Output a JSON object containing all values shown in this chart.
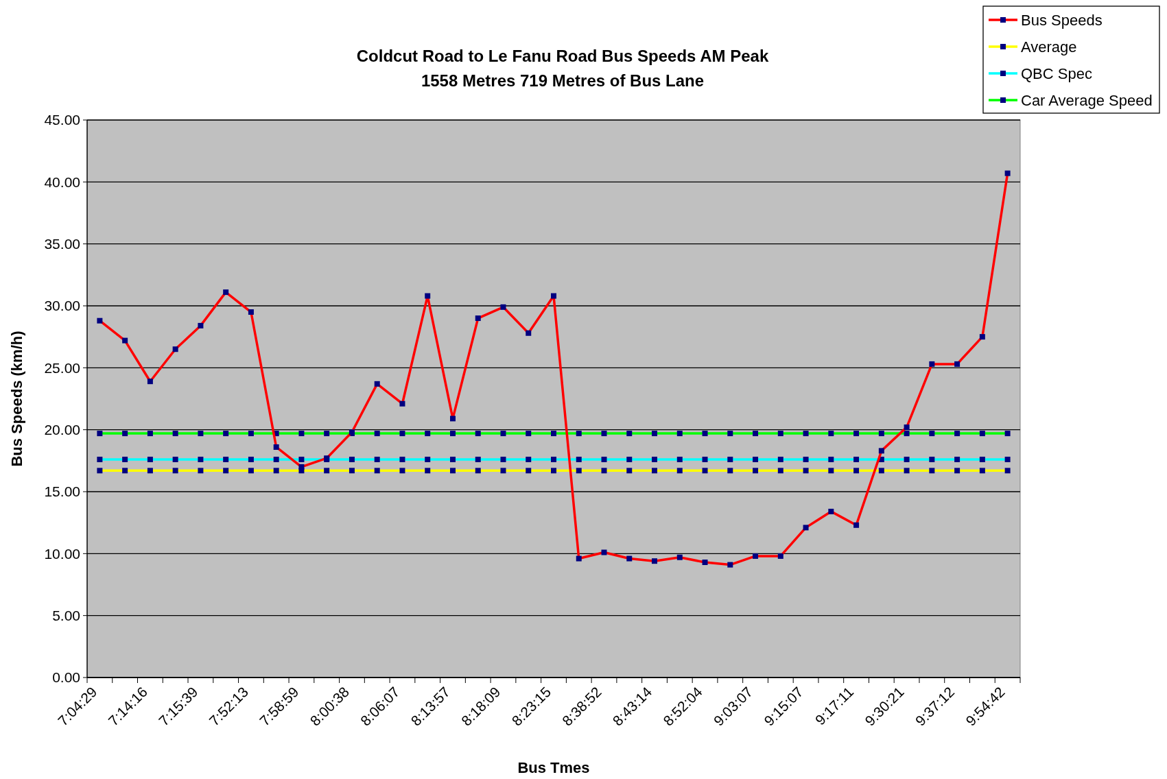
{
  "chart_data": {
    "type": "line",
    "title": "Coldcut Road to Le Fanu Road Bus Speeds AM Peak",
    "subtitle": "1558 Metres 719 Metres of Bus Lane",
    "xlabel": "Bus Tmes",
    "ylabel": "Bus Speeds (km/h)",
    "categories": [
      "7:04:29",
      null,
      "7:14:16",
      null,
      "7:15:39",
      null,
      "7:52:13",
      null,
      "7:58:59",
      null,
      "8:00:38",
      null,
      "8:06:07",
      null,
      "8:13:57",
      null,
      "8:18:09",
      null,
      "8:23:15",
      null,
      "8:38:52",
      null,
      "8:43:14",
      null,
      "8:52:04",
      null,
      "9:03:07",
      null,
      "9:15:07",
      null,
      "9:17:11",
      null,
      "9:30:21",
      null,
      "9:37:12",
      null,
      "9:54:42"
    ],
    "series": [
      {
        "name": "Bus Speeds",
        "color": "#ff0000",
        "values": [
          28.8,
          27.2,
          23.9,
          26.5,
          28.4,
          31.1,
          29.5,
          18.6,
          17.0,
          17.7,
          19.8,
          23.7,
          22.1,
          30.8,
          20.9,
          29.0,
          29.9,
          27.8,
          30.8,
          9.6,
          10.1,
          9.6,
          9.4,
          9.7,
          9.3,
          9.1,
          9.8,
          9.8,
          12.1,
          13.4,
          12.3,
          18.3,
          20.2,
          25.3,
          25.3,
          27.5,
          40.7
        ]
      },
      {
        "name": "Average",
        "color": "#ffff00",
        "values": [
          16.7,
          16.7,
          16.7,
          16.7,
          16.7,
          16.7,
          16.7,
          16.7,
          16.7,
          16.7,
          16.7,
          16.7,
          16.7,
          16.7,
          16.7,
          16.7,
          16.7,
          16.7,
          16.7,
          16.7,
          16.7,
          16.7,
          16.7,
          16.7,
          16.7,
          16.7,
          16.7,
          16.7,
          16.7,
          16.7,
          16.7,
          16.7,
          16.7,
          16.7,
          16.7,
          16.7,
          16.7
        ]
      },
      {
        "name": "QBC Spec",
        "color": "#00ffff",
        "values": [
          17.6,
          17.6,
          17.6,
          17.6,
          17.6,
          17.6,
          17.6,
          17.6,
          17.6,
          17.6,
          17.6,
          17.6,
          17.6,
          17.6,
          17.6,
          17.6,
          17.6,
          17.6,
          17.6,
          17.6,
          17.6,
          17.6,
          17.6,
          17.6,
          17.6,
          17.6,
          17.6,
          17.6,
          17.6,
          17.6,
          17.6,
          17.6,
          17.6,
          17.6,
          17.6,
          17.6,
          17.6
        ]
      },
      {
        "name": "Car Average Speed",
        "color": "#00ff00",
        "values": [
          19.7,
          19.7,
          19.7,
          19.7,
          19.7,
          19.7,
          19.7,
          19.7,
          19.7,
          19.7,
          19.7,
          19.7,
          19.7,
          19.7,
          19.7,
          19.7,
          19.7,
          19.7,
          19.7,
          19.7,
          19.7,
          19.7,
          19.7,
          19.7,
          19.7,
          19.7,
          19.7,
          19.7,
          19.7,
          19.7,
          19.7,
          19.7,
          19.7,
          19.7,
          19.7,
          19.7,
          19.7
        ]
      }
    ],
    "ylim": [
      0,
      45
    ],
    "yticks": [
      {
        "value": 0,
        "label": "0.00"
      },
      {
        "value": 5,
        "label": "5.00"
      },
      {
        "value": 10,
        "label": "10.00"
      },
      {
        "value": 15,
        "label": "15.00"
      },
      {
        "value": 20,
        "label": "20.00"
      },
      {
        "value": 25,
        "label": "25.00"
      },
      {
        "value": 30,
        "label": "30.00"
      },
      {
        "value": 35,
        "label": "35.00"
      },
      {
        "value": 40,
        "label": "40.00"
      },
      {
        "value": 45,
        "label": "45.00"
      }
    ],
    "grid": "y",
    "legend": "top right",
    "marker": "square",
    "line_style": "solid"
  }
}
